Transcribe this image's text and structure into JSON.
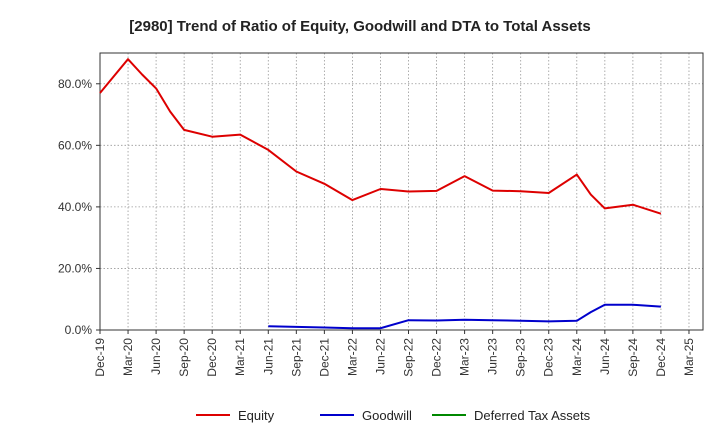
{
  "chart_data": {
    "type": "line",
    "title": "[2980]  Trend of Ratio of Equity, Goodwill and DTA to Total Assets",
    "xlabel": "",
    "ylabel": "",
    "ylim": [
      0,
      90
    ],
    "yticks": [
      0,
      20,
      40,
      60,
      80
    ],
    "ytick_labels": [
      "0.0%",
      "20.0%",
      "40.0%",
      "60.0%",
      "80.0%"
    ],
    "x_ticks": [
      "Dec-19",
      "Mar-20",
      "Jun-20",
      "Sep-20",
      "Dec-20",
      "Mar-21",
      "Jun-21",
      "Sep-21",
      "Dec-21",
      "Mar-22",
      "Jun-22",
      "Sep-22",
      "Dec-22",
      "Mar-23",
      "Jun-23",
      "Sep-23",
      "Dec-23",
      "Mar-24",
      "Jun-24",
      "Sep-24",
      "Dec-24",
      "Mar-25"
    ],
    "grid": true,
    "legend_position": "bottom",
    "series": [
      {
        "name": "Equity",
        "color": "#dd0000",
        "points": [
          [
            0,
            77
          ],
          [
            1,
            88
          ],
          [
            1.5,
            83
          ],
          [
            2,
            78.5
          ],
          [
            2.5,
            71
          ],
          [
            3,
            65
          ],
          [
            4,
            62.8
          ],
          [
            5,
            63.5
          ],
          [
            6,
            58.5
          ],
          [
            7,
            51.5
          ],
          [
            8,
            47.5
          ],
          [
            9,
            42.2
          ],
          [
            10,
            45.8
          ],
          [
            11,
            45
          ],
          [
            12,
            45.2
          ],
          [
            13,
            50
          ],
          [
            14,
            45.3
          ],
          [
            15,
            45.1
          ],
          [
            16,
            44.5
          ],
          [
            17,
            50.5
          ],
          [
            17.5,
            44
          ],
          [
            18,
            39.5
          ],
          [
            19,
            40.7
          ],
          [
            20,
            37.8
          ]
        ]
      },
      {
        "name": "Goodwill",
        "color": "#0000cc",
        "points": [
          [
            6,
            1.2
          ],
          [
            7,
            1
          ],
          [
            8,
            0.8
          ],
          [
            9,
            0.6
          ],
          [
            10,
            0.6
          ],
          [
            11,
            3.2
          ],
          [
            12,
            3.1
          ],
          [
            13,
            3.3
          ],
          [
            14,
            3.2
          ],
          [
            15,
            3
          ],
          [
            16,
            2.8
          ],
          [
            17,
            3
          ],
          [
            17.5,
            5.8
          ],
          [
            18,
            8.2
          ],
          [
            19,
            8.2
          ],
          [
            20,
            7.6
          ]
        ]
      },
      {
        "name": "Deferred Tax Assets",
        "color": "#008800",
        "points": []
      }
    ]
  }
}
